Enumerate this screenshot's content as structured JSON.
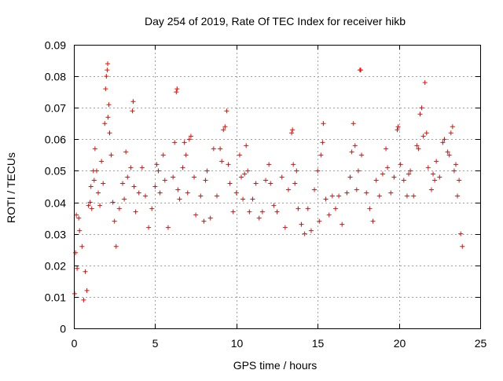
{
  "chart_data": {
    "type": "scatter",
    "title": "Day 254 of 2019, Rate Of TEC Index for receiver hikb",
    "xlabel": "GPS time / hours",
    "ylabel": "ROTI / TECUs",
    "xlim": [
      0,
      25
    ],
    "ylim": [
      0,
      0.09
    ],
    "x_ticks": [
      0,
      5,
      10,
      15,
      20,
      25
    ],
    "x_tick_labels": [
      "0",
      "5",
      "10",
      "15",
      "20",
      "25"
    ],
    "y_ticks": [
      0,
      0.01,
      0.02,
      0.03,
      0.04,
      0.05,
      0.06,
      0.07,
      0.08,
      0.09
    ],
    "y_tick_labels": [
      "0",
      "0.01",
      "0.02",
      "0.03",
      "0.04",
      "0.05",
      "0.06",
      "0.07",
      "0.08",
      "0.09"
    ],
    "grid": true,
    "marker": "plus",
    "marker_color": "#ff0000",
    "series": [
      {
        "name": "ROTI",
        "points": [
          [
            0.05,
            0.011
          ],
          [
            0.1,
            0.024
          ],
          [
            0.15,
            0.036
          ],
          [
            0.2,
            0.019
          ],
          [
            0.3,
            0.035
          ],
          [
            0.35,
            0.031
          ],
          [
            0.5,
            0.026
          ],
          [
            0.6,
            0.009
          ],
          [
            0.7,
            0.018
          ],
          [
            0.8,
            0.012
          ],
          [
            0.9,
            0.039
          ],
          [
            1.0,
            0.04
          ],
          [
            1.05,
            0.045
          ],
          [
            1.1,
            0.038
          ],
          [
            1.2,
            0.05
          ],
          [
            1.25,
            0.047
          ],
          [
            1.3,
            0.057
          ],
          [
            1.4,
            0.05
          ],
          [
            1.5,
            0.043
          ],
          [
            1.6,
            0.039
          ],
          [
            1.7,
            0.053
          ],
          [
            1.8,
            0.046
          ],
          [
            1.9,
            0.065
          ],
          [
            1.95,
            0.076
          ],
          [
            2.0,
            0.08
          ],
          [
            2.05,
            0.082
          ],
          [
            2.08,
            0.084
          ],
          [
            2.1,
            0.067
          ],
          [
            2.15,
            0.071
          ],
          [
            2.2,
            0.062
          ],
          [
            2.3,
            0.055
          ],
          [
            2.4,
            0.04
          ],
          [
            2.5,
            0.034
          ],
          [
            2.6,
            0.026
          ],
          [
            2.8,
            0.038
          ],
          [
            3.0,
            0.046
          ],
          [
            3.1,
            0.041
          ],
          [
            3.2,
            0.056
          ],
          [
            3.3,
            0.048
          ],
          [
            3.5,
            0.051
          ],
          [
            3.6,
            0.069
          ],
          [
            3.65,
            0.072
          ],
          [
            3.7,
            0.045
          ],
          [
            3.8,
            0.037
          ],
          [
            4.0,
            0.043
          ],
          [
            4.2,
            0.051
          ],
          [
            4.4,
            0.042
          ],
          [
            4.6,
            0.032
          ],
          [
            4.8,
            0.038
          ],
          [
            5.0,
            0.045
          ],
          [
            5.1,
            0.052
          ],
          [
            5.2,
            0.05
          ],
          [
            5.3,
            0.043
          ],
          [
            5.5,
            0.055
          ],
          [
            5.6,
            0.047
          ],
          [
            5.8,
            0.032
          ],
          [
            6.1,
            0.048
          ],
          [
            6.2,
            0.059
          ],
          [
            6.3,
            0.075
          ],
          [
            6.35,
            0.076
          ],
          [
            6.4,
            0.044
          ],
          [
            6.5,
            0.041
          ],
          [
            6.7,
            0.051
          ],
          [
            6.8,
            0.059
          ],
          [
            6.9,
            0.055
          ],
          [
            7.0,
            0.043
          ],
          [
            7.1,
            0.06
          ],
          [
            7.2,
            0.061
          ],
          [
            7.4,
            0.048
          ],
          [
            7.5,
            0.036
          ],
          [
            7.8,
            0.042
          ],
          [
            8.0,
            0.034
          ],
          [
            8.1,
            0.047
          ],
          [
            8.2,
            0.05
          ],
          [
            8.4,
            0.035
          ],
          [
            8.6,
            0.057
          ],
          [
            8.8,
            0.042
          ],
          [
            9.0,
            0.057
          ],
          [
            9.1,
            0.053
          ],
          [
            9.2,
            0.063
          ],
          [
            9.3,
            0.064
          ],
          [
            9.4,
            0.069
          ],
          [
            9.5,
            0.052
          ],
          [
            9.6,
            0.046
          ],
          [
            9.8,
            0.037
          ],
          [
            10.0,
            0.043
          ],
          [
            10.2,
            0.055
          ],
          [
            10.3,
            0.048
          ],
          [
            10.4,
            0.041
          ],
          [
            10.5,
            0.049
          ],
          [
            10.6,
            0.058
          ],
          [
            10.7,
            0.05
          ],
          [
            10.8,
            0.037
          ],
          [
            11.0,
            0.041
          ],
          [
            11.2,
            0.046
          ],
          [
            11.4,
            0.035
          ],
          [
            11.6,
            0.037
          ],
          [
            11.8,
            0.047
          ],
          [
            12.0,
            0.052
          ],
          [
            12.1,
            0.046
          ],
          [
            12.3,
            0.039
          ],
          [
            12.5,
            0.037
          ],
          [
            12.8,
            0.048
          ],
          [
            13.0,
            0.032
          ],
          [
            13.2,
            0.044
          ],
          [
            13.4,
            0.062
          ],
          [
            13.45,
            0.063
          ],
          [
            13.5,
            0.052
          ],
          [
            13.6,
            0.046
          ],
          [
            13.7,
            0.05
          ],
          [
            13.8,
            0.038
          ],
          [
            14.0,
            0.033
          ],
          [
            14.2,
            0.03
          ],
          [
            14.4,
            0.038
          ],
          [
            14.6,
            0.031
          ],
          [
            14.8,
            0.044
          ],
          [
            15.0,
            0.05
          ],
          [
            15.1,
            0.034
          ],
          [
            15.2,
            0.055
          ],
          [
            15.3,
            0.059
          ],
          [
            15.35,
            0.065
          ],
          [
            15.5,
            0.041
          ],
          [
            15.7,
            0.036
          ],
          [
            15.9,
            0.042
          ],
          [
            16.1,
            0.038
          ],
          [
            16.3,
            0.042
          ],
          [
            16.5,
            0.033
          ],
          [
            16.8,
            0.043
          ],
          [
            17.0,
            0.048
          ],
          [
            17.1,
            0.056
          ],
          [
            17.2,
            0.065
          ],
          [
            17.3,
            0.058
          ],
          [
            17.4,
            0.044
          ],
          [
            17.5,
            0.05
          ],
          [
            17.6,
            0.082
          ],
          [
            17.65,
            0.082
          ],
          [
            17.7,
            0.055
          ],
          [
            18.0,
            0.043
          ],
          [
            18.2,
            0.038
          ],
          [
            18.4,
            0.034
          ],
          [
            18.6,
            0.047
          ],
          [
            18.8,
            0.042
          ],
          [
            19.0,
            0.049
          ],
          [
            19.2,
            0.057
          ],
          [
            19.3,
            0.051
          ],
          [
            19.5,
            0.043
          ],
          [
            19.7,
            0.048
          ],
          [
            19.9,
            0.063
          ],
          [
            19.95,
            0.064
          ],
          [
            20.1,
            0.052
          ],
          [
            20.3,
            0.047
          ],
          [
            20.5,
            0.042
          ],
          [
            20.6,
            0.049
          ],
          [
            20.7,
            0.05
          ],
          [
            20.9,
            0.042
          ],
          [
            21.1,
            0.058
          ],
          [
            21.2,
            0.057
          ],
          [
            21.3,
            0.068
          ],
          [
            21.4,
            0.07
          ],
          [
            21.5,
            0.061
          ],
          [
            21.6,
            0.078
          ],
          [
            21.7,
            0.062
          ],
          [
            21.8,
            0.051
          ],
          [
            22.0,
            0.044
          ],
          [
            22.1,
            0.049
          ],
          [
            22.2,
            0.047
          ],
          [
            22.3,
            0.053
          ],
          [
            22.5,
            0.048
          ],
          [
            22.7,
            0.059
          ],
          [
            22.8,
            0.06
          ],
          [
            23.0,
            0.056
          ],
          [
            23.1,
            0.055
          ],
          [
            23.2,
            0.062
          ],
          [
            23.3,
            0.064
          ],
          [
            23.4,
            0.05
          ],
          [
            23.5,
            0.052
          ],
          [
            23.6,
            0.042
          ],
          [
            23.7,
            0.047
          ],
          [
            23.8,
            0.03
          ],
          [
            23.9,
            0.026
          ]
        ]
      }
    ]
  }
}
